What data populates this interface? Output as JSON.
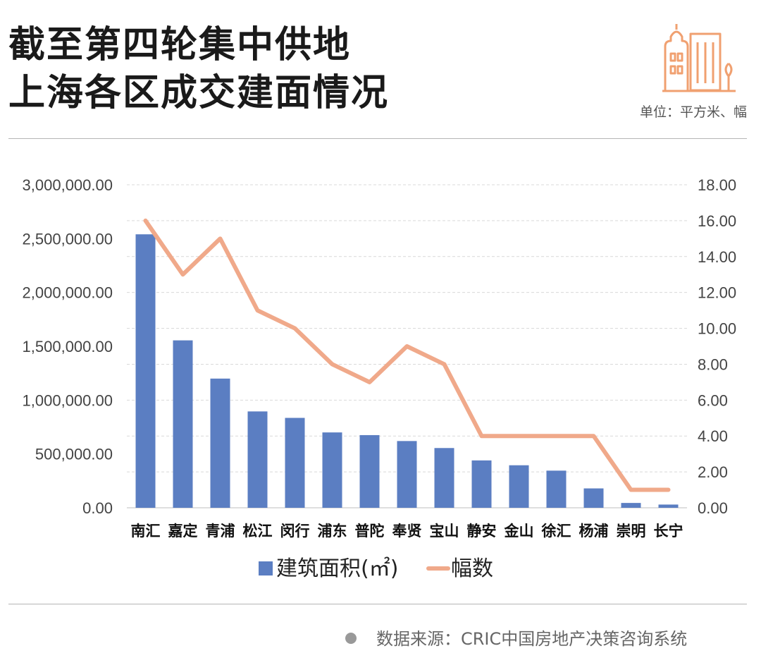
{
  "header": {
    "title_line1": "截至第四轮集中供地",
    "title_line2": "上海各区成交建面情况",
    "unit_label": "单位：平方米、幅"
  },
  "footer": {
    "source_label": "数据来源：CRIC中国房地产决策咨询系统"
  },
  "icons": {
    "header_icon": "building-icon",
    "source_bullet": "bullet-dot-icon"
  },
  "colors": {
    "bar": "#5b7ec2",
    "line": "#f0a98a",
    "building_icon": "#f0a070"
  },
  "chart_data": {
    "type": "bar+line",
    "categories": [
      "南汇",
      "嘉定",
      "青浦",
      "松江",
      "闵行",
      "浦东",
      "普陀",
      "奉贤",
      "宝山",
      "静安",
      "金山",
      "徐汇",
      "杨浦",
      "崇明",
      "长宁"
    ],
    "series": [
      {
        "name": "建筑面积(㎡)",
        "type": "bar",
        "axis": "left",
        "values": [
          2540000,
          1555000,
          1200000,
          895000,
          835000,
          700000,
          675000,
          620000,
          555000,
          440000,
          395000,
          345000,
          180000,
          45000,
          30000
        ]
      },
      {
        "name": "幅数",
        "type": "line",
        "axis": "right",
        "values": [
          16,
          13,
          15,
          11,
          10,
          8,
          7,
          9,
          8,
          4,
          4,
          4,
          4,
          1,
          1
        ]
      }
    ],
    "y_left": {
      "ylim": [
        0,
        3000000
      ],
      "ticks": [
        "0.00",
        "500,000.00",
        "1,000,000.00",
        "1,500,000.00",
        "2,000,000.00",
        "2,500,000.00",
        "3,000,000.00"
      ]
    },
    "y_right": {
      "ylim": [
        0,
        18
      ],
      "ticks": [
        "0.00",
        "2.00",
        "4.00",
        "6.00",
        "8.00",
        "10.00",
        "12.00",
        "14.00",
        "16.00",
        "18.00"
      ]
    },
    "grid": true,
    "legend": "bottom-center"
  }
}
